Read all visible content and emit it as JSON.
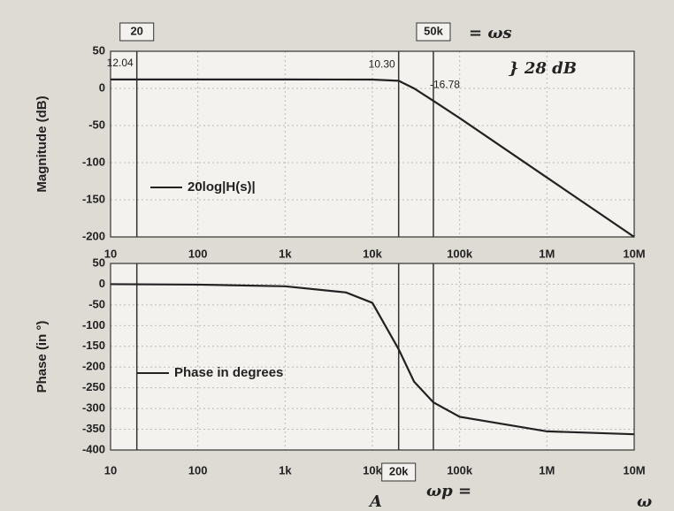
{
  "chart_data": [
    {
      "type": "line",
      "ylabel": "Magnitude (dB)",
      "xscale": "log",
      "xlim": [
        10,
        10000000
      ],
      "xticks": [
        10,
        100,
        {
          "value": 1000,
          "label": "1k"
        },
        {
          "value": 10000,
          "label": "10k"
        },
        {
          "value": 100000,
          "label": "100k"
        },
        {
          "value": 1000000,
          "label": "1M"
        },
        {
          "value": 10000000,
          "label": "10M"
        }
      ],
      "ylim": [
        -200,
        50
      ],
      "yticks": [
        50,
        0,
        -50,
        -100,
        -150,
        -200
      ],
      "grid": true,
      "x": [
        10,
        20,
        100,
        1000,
        10000,
        20000,
        30000,
        50000,
        100000,
        1000000,
        10000000
      ],
      "series": [
        {
          "name": "20log|H(s)|",
          "color": "#222222",
          "values": [
            12.04,
            12.04,
            12.04,
            12.04,
            11.9,
            10.3,
            0,
            -16.78,
            -40,
            -120,
            -200
          ],
          "value_labels": [
            null,
            "12.04",
            null,
            null,
            null,
            "10.30",
            null,
            "-16.78",
            null,
            null,
            null
          ]
        }
      ],
      "vlines": [
        {
          "value": 20,
          "label": "20"
        },
        {
          "value": 20000
        },
        {
          "value": 50000,
          "label": "50k"
        }
      ],
      "annotations": [
        "= ωs",
        "} 28 dB"
      ]
    },
    {
      "type": "line",
      "ylabel": "Phase (in °)",
      "xscale": "log",
      "xlim": [
        10,
        10000000
      ],
      "xticks": [
        10,
        100,
        {
          "value": 1000,
          "label": "1k"
        },
        {
          "value": 10000,
          "label": "10k"
        },
        {
          "value": 100000,
          "label": "100k"
        },
        {
          "value": 1000000,
          "label": "1M"
        },
        {
          "value": 10000000,
          "label": "10M"
        }
      ],
      "ylim": [
        -400,
        50
      ],
      "yticks": [
        50,
        0,
        -50,
        -100,
        -150,
        -200,
        -250,
        -300,
        -350,
        -400
      ],
      "grid": true,
      "x": [
        10,
        100,
        1000,
        5000,
        10000,
        20000,
        30000,
        50000,
        100000,
        1000000,
        10000000
      ],
      "series": [
        {
          "name": "Phase in degrees",
          "color": "#222222",
          "values": [
            0,
            -1,
            -5,
            -20,
            -45,
            -157,
            -235,
            -285,
            -320,
            -355,
            -362
          ]
        }
      ],
      "vlines": [
        {
          "value": 20
        },
        {
          "value": 20000,
          "label": "20k"
        },
        {
          "value": 50000
        }
      ],
      "annotations": [
        "ωp =",
        "ω",
        "A"
      ]
    }
  ]
}
